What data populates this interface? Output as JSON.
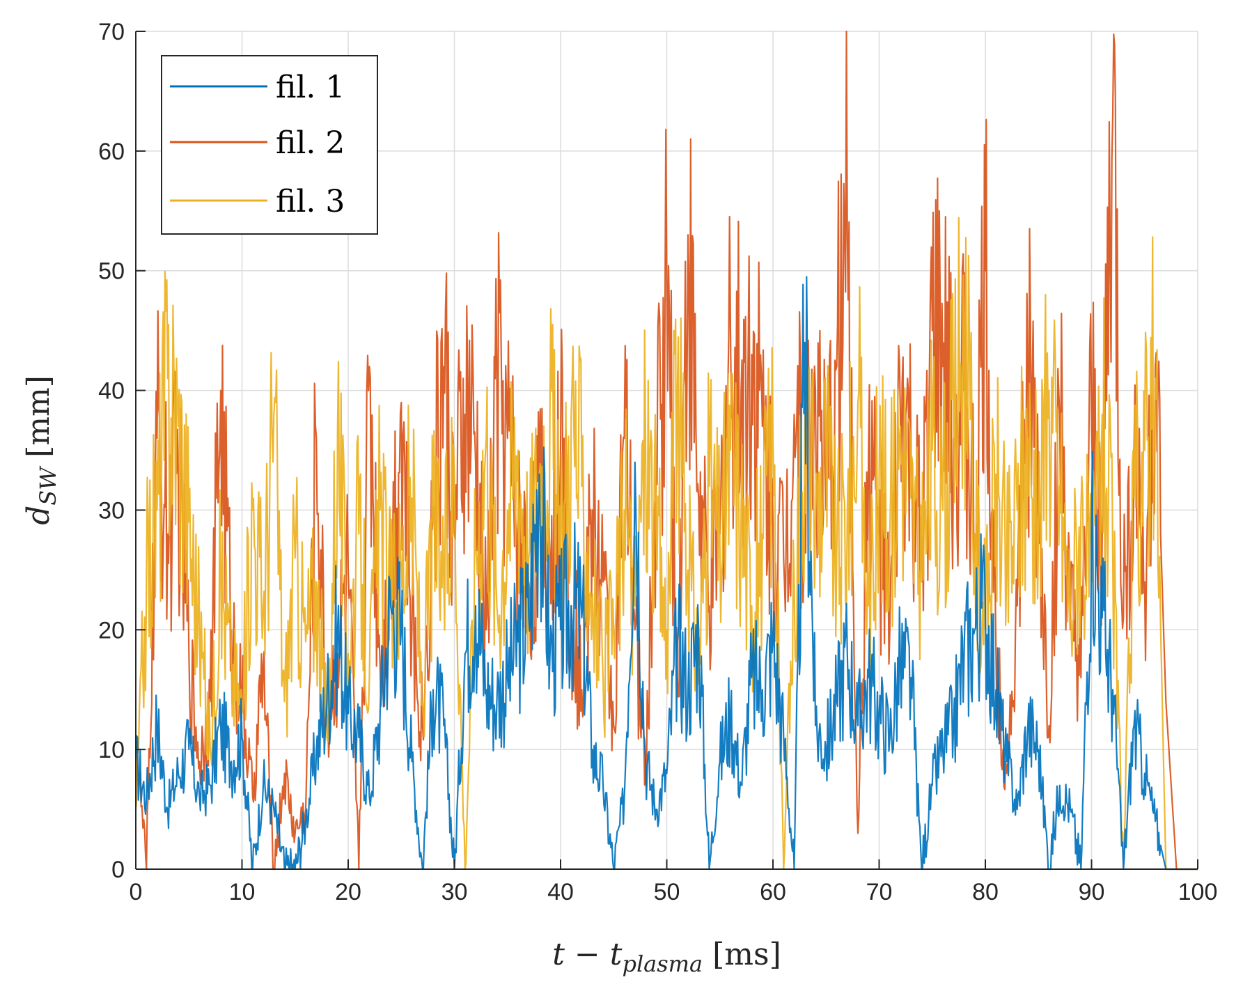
{
  "chart_data": {
    "type": "line",
    "title": "",
    "xlabel": {
      "main": "t − t",
      "sub": "plasma",
      "unit": "[ms]"
    },
    "ylabel": {
      "main": "d",
      "sub": "SW",
      "unit": "[mm]"
    },
    "xlim": [
      0,
      100
    ],
    "ylim": [
      0,
      70
    ],
    "xticks": [
      0,
      10,
      20,
      30,
      40,
      50,
      60,
      70,
      80,
      90,
      100
    ],
    "yticks": [
      0,
      10,
      20,
      30,
      40,
      50,
      60,
      70
    ],
    "xtick_labels": [
      "0",
      "10",
      "20",
      "30",
      "40",
      "50",
      "60",
      "70",
      "80",
      "90",
      "100"
    ],
    "ytick_labels": [
      "0",
      "10",
      "20",
      "30",
      "40",
      "50",
      "60",
      "70"
    ],
    "grid": true,
    "legend_position": "top-left",
    "colors": {
      "axis": "#262626",
      "grid": "#dcdcdc",
      "background": "#ffffff"
    },
    "series": [
      {
        "name": "fil. 1",
        "color": "#0072BD",
        "x": [
          0,
          1,
          2,
          3,
          4,
          5,
          6,
          7,
          8,
          9,
          10,
          11,
          12,
          13,
          14,
          15,
          16,
          17,
          18,
          19,
          20,
          21,
          22,
          23,
          24,
          25,
          26,
          27,
          28,
          29,
          30,
          31,
          32,
          33,
          34,
          35,
          36,
          37,
          38,
          39,
          40,
          41,
          42,
          43,
          44,
          45,
          46,
          47,
          48,
          49,
          50,
          51,
          52,
          53,
          54,
          55,
          56,
          57,
          58,
          59,
          60,
          61,
          62,
          63,
          64,
          65,
          66,
          67,
          68,
          69,
          70,
          71,
          72,
          73,
          74,
          75,
          76,
          77,
          78,
          79,
          80,
          81,
          82,
          83,
          84,
          85,
          86,
          87,
          88,
          89,
          90,
          91,
          92,
          93,
          94,
          95,
          96,
          97,
          98,
          99,
          100
        ],
        "values": [
          9,
          6,
          12,
          5,
          8,
          10,
          6,
          7,
          12,
          9,
          11,
          0,
          7,
          5,
          0,
          0,
          4,
          10,
          14,
          20,
          13,
          11,
          6,
          13,
          22,
          20,
          9,
          0,
          15,
          12,
          0,
          18,
          22,
          15,
          14,
          16,
          19,
          21,
          33,
          18,
          20,
          22,
          21,
          10,
          7,
          0,
          6,
          34,
          9,
          5,
          8,
          19,
          15,
          20,
          0,
          9,
          13,
          7,
          16,
          15,
          19,
          11,
          0,
          44,
          12,
          10,
          14,
          18,
          12,
          16,
          13,
          11,
          17,
          16,
          0,
          7,
          10,
          12,
          18,
          20,
          22,
          15,
          9,
          5,
          12,
          10,
          0,
          7,
          5,
          0,
          29,
          21,
          15,
          0,
          12,
          8,
          4,
          0,
          0,
          0,
          0
        ]
      },
      {
        "name": "fil. 2",
        "color": "#D95319",
        "x": [
          0,
          1,
          2,
          3,
          4,
          5,
          6,
          7,
          8,
          9,
          10,
          11,
          12,
          13,
          14,
          15,
          16,
          17,
          18,
          19,
          20,
          21,
          22,
          23,
          24,
          25,
          26,
          27,
          28,
          29,
          30,
          31,
          32,
          33,
          34,
          35,
          36,
          37,
          38,
          39,
          40,
          41,
          42,
          43,
          44,
          45,
          46,
          47,
          48,
          49,
          50,
          51,
          52,
          53,
          54,
          55,
          56,
          57,
          58,
          59,
          60,
          61,
          62,
          63,
          64,
          65,
          66,
          67,
          68,
          69,
          70,
          71,
          72,
          73,
          74,
          75,
          76,
          77,
          78,
          79,
          80,
          81,
          82,
          83,
          84,
          85,
          86,
          87,
          88,
          89,
          90,
          91,
          92,
          93,
          94,
          95,
          96,
          97,
          98,
          99,
          100
        ],
        "values": [
          11,
          0,
          36,
          28,
          33,
          18,
          9,
          14,
          40,
          20,
          14,
          6,
          17,
          0,
          8,
          3,
          5,
          36,
          12,
          18,
          25,
          0,
          42,
          17,
          25,
          39,
          20,
          12,
          30,
          42,
          28,
          38,
          34,
          20,
          41,
          36,
          28,
          24,
          30,
          26,
          35,
          22,
          15,
          30,
          24,
          12,
          36,
          20,
          8,
          33,
          50,
          16,
          53,
          31,
          22,
          28,
          45,
          40,
          43,
          37,
          29,
          26,
          38,
          32,
          40,
          30,
          42,
          53,
          3,
          35,
          28,
          20,
          38,
          33,
          25,
          45,
          42,
          36,
          40,
          28,
          50,
          18,
          8,
          22,
          42,
          30,
          12,
          38,
          20,
          16,
          37,
          28,
          63,
          21,
          35,
          24,
          42,
          14,
          0,
          0,
          0
        ]
      },
      {
        "name": "fil. 3",
        "color": "#EDB120",
        "x": [
          0,
          1,
          2,
          3,
          4,
          5,
          6,
          7,
          8,
          9,
          10,
          11,
          12,
          13,
          14,
          15,
          16,
          17,
          18,
          19,
          20,
          21,
          22,
          23,
          24,
          25,
          26,
          27,
          28,
          29,
          30,
          31,
          32,
          33,
          34,
          35,
          36,
          37,
          38,
          39,
          40,
          41,
          42,
          43,
          44,
          45,
          46,
          47,
          48,
          49,
          50,
          51,
          52,
          53,
          54,
          55,
          56,
          57,
          58,
          59,
          60,
          61,
          62,
          63,
          64,
          65,
          66,
          67,
          68,
          69,
          70,
          71,
          72,
          73,
          74,
          75,
          76,
          77,
          78,
          79,
          80,
          81,
          82,
          83,
          84,
          85,
          86,
          87,
          88,
          89,
          90,
          91,
          92,
          93,
          94,
          95,
          96,
          97,
          98,
          99,
          100
        ],
        "values": [
          5,
          24,
          30,
          41,
          37,
          29,
          20,
          10,
          25,
          17,
          13,
          30,
          22,
          38,
          14,
          26,
          19,
          24,
          11,
          37,
          18,
          28,
          16,
          30,
          22,
          25,
          31,
          14,
          29,
          24,
          33,
          0,
          27,
          36,
          22,
          30,
          35,
          26,
          33,
          39,
          25,
          38,
          32,
          23,
          16,
          20,
          30,
          22,
          36,
          28,
          20,
          40,
          25,
          18,
          32,
          27,
          35,
          30,
          22,
          28,
          36,
          0,
          24,
          38,
          29,
          35,
          26,
          30,
          39,
          22,
          33,
          28,
          37,
          31,
          24,
          35,
          30,
          38,
          46,
          28,
          20,
          33,
          25,
          30,
          36,
          28,
          40,
          32,
          22,
          30,
          24,
          38,
          26,
          0,
          31,
          35,
          41,
          0,
          0,
          0,
          0
        ]
      }
    ]
  }
}
